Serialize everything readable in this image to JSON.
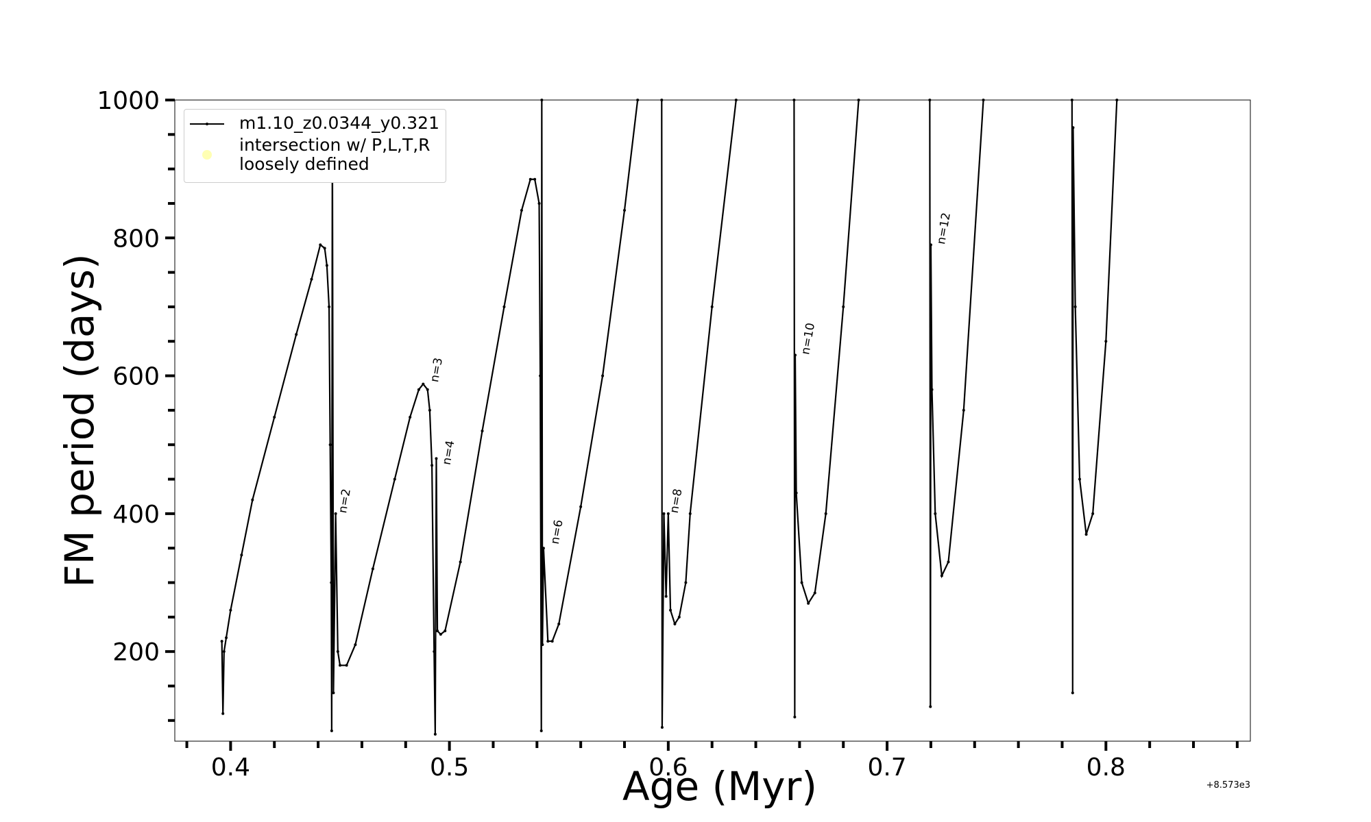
{
  "chart_data": {
    "type": "line",
    "xlabel": "Age (Myr)",
    "ylabel": "FM period (days)",
    "x_offset_label": "+8.573e3",
    "xlim": [
      0.3745,
      0.866
    ],
    "ylim": [
      70,
      1000
    ],
    "xticks": [
      0.4,
      0.5,
      0.6,
      0.7,
      0.8
    ],
    "xminorticks": [
      0.38,
      0.42,
      0.44,
      0.46,
      0.48,
      0.52,
      0.54,
      0.56,
      0.58,
      0.62,
      0.64,
      0.66,
      0.68,
      0.72,
      0.74,
      0.76,
      0.78,
      0.82,
      0.84,
      0.86
    ],
    "yticks": [
      200,
      400,
      600,
      800,
      1000
    ],
    "yminorticks": [
      100,
      150,
      250,
      300,
      350,
      450,
      500,
      550,
      650,
      700,
      750,
      850,
      900,
      950
    ],
    "legend_position": "upper left",
    "x": [
      0.396,
      0.3965,
      0.397,
      0.398,
      0.4,
      0.405,
      0.41,
      0.42,
      0.43,
      0.437,
      0.441,
      0.443,
      0.444,
      0.445,
      0.4455,
      0.446,
      0.4462,
      0.4465,
      0.447,
      0.448,
      0.449,
      0.45,
      0.453,
      0.457,
      0.465,
      0.475,
      0.482,
      0.486,
      0.488,
      0.49,
      0.491,
      0.492,
      0.493,
      0.4935,
      0.494,
      0.4945,
      0.496,
      0.498,
      0.505,
      0.515,
      0.525,
      0.533,
      0.537,
      0.539,
      0.541,
      0.5415,
      0.542,
      0.5422,
      0.5425,
      0.543,
      0.545,
      0.547,
      0.55,
      0.56,
      0.57,
      0.58,
      0.586,
      0.591,
      0.597,
      0.5972,
      0.598,
      0.599,
      0.6,
      0.601,
      0.603,
      0.605,
      0.608,
      0.61,
      0.62,
      0.631,
      0.645,
      0.6575,
      0.6578,
      0.658,
      0.6585,
      0.661,
      0.664,
      0.667,
      0.672,
      0.68,
      0.687,
      0.7,
      0.7195,
      0.7198,
      0.72,
      0.7205,
      0.722,
      0.725,
      0.728,
      0.735,
      0.744,
      0.76,
      0.7845,
      0.7848,
      0.785,
      0.786,
      0.788,
      0.791,
      0.794,
      0.8,
      0.805
    ],
    "series": [
      {
        "name": "m1.10_z0.0344_y0.321",
        "color": "#000000",
        "values": [
          215,
          110,
          200,
          220,
          260,
          340,
          420,
          540,
          660,
          740,
          790,
          785,
          760,
          700,
          500,
          300,
          85,
          950,
          140,
          400,
          200,
          180,
          180,
          210,
          320,
          450,
          540,
          580,
          588,
          580,
          550,
          470,
          200,
          80,
          480,
          230,
          225,
          230,
          330,
          520,
          700,
          840,
          885,
          885,
          850,
          600,
          85,
          1000,
          210,
          350,
          215,
          215,
          240,
          410,
          600,
          840,
          1000,
          null,
          1000,
          90,
          400,
          280,
          400,
          260,
          240,
          250,
          300,
          400,
          700,
          1000,
          null,
          1000,
          105,
          630,
          430,
          300,
          270,
          285,
          400,
          700,
          1000,
          null,
          1000,
          120,
          790,
          580,
          400,
          310,
          330,
          550,
          1000,
          null,
          1000,
          140,
          960,
          700,
          450,
          370,
          400,
          650,
          1000
        ]
      },
      {
        "name": "intersection w/ P,L,T,R\nloosely defined",
        "color": "#ffffb3"
      }
    ],
    "annotations": [
      {
        "text": "n=2",
        "x": 0.449,
        "y": 400
      },
      {
        "text": "n=3",
        "x": 0.491,
        "y": 590
      },
      {
        "text": "n=4",
        "x": 0.4965,
        "y": 470
      },
      {
        "text": "n=6",
        "x": 0.546,
        "y": 355
      },
      {
        "text": "n=8",
        "x": 0.6005,
        "y": 400
      },
      {
        "text": "n=10",
        "x": 0.6605,
        "y": 630
      },
      {
        "text": "n=12",
        "x": 0.7225,
        "y": 790
      }
    ]
  }
}
